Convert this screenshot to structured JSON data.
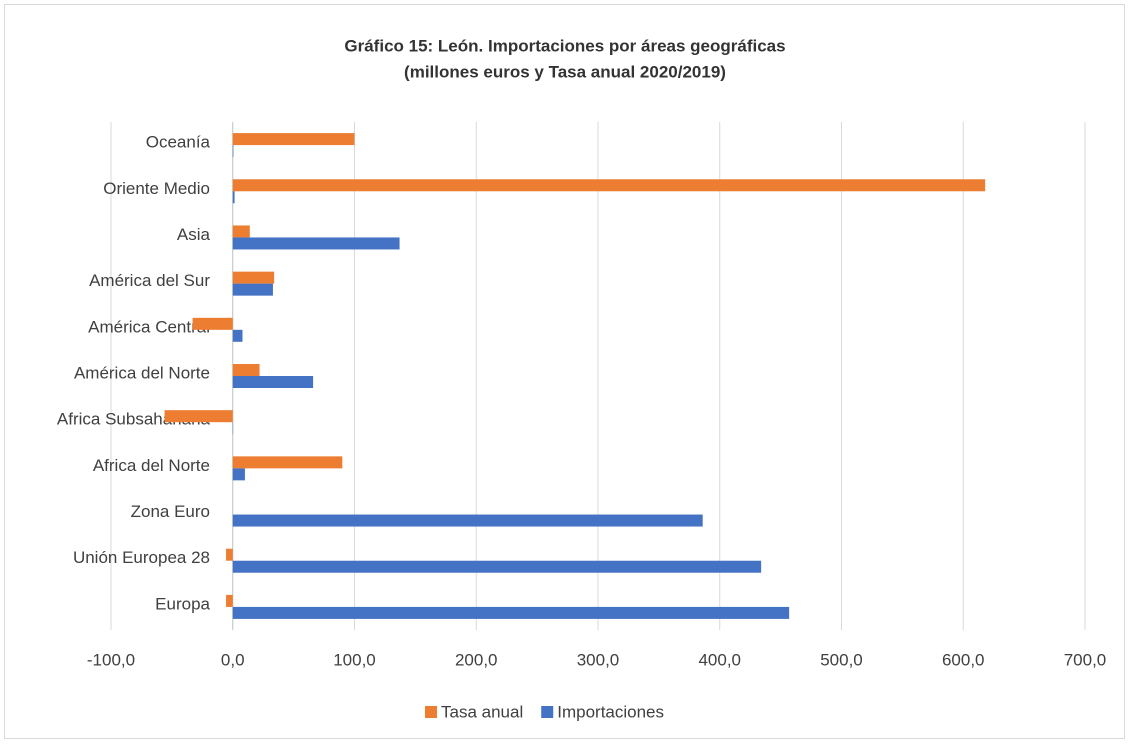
{
  "chart_data": {
    "type": "barh",
    "title": "Gráfico 15: León. Importaciones por áreas geográficas",
    "subtitle": "(millones euros y Tasa anual 2020/2019)",
    "categories": [
      "Europa",
      "Unión Europea 28",
      "Zona Euro",
      "Africa del Norte",
      "Africa Subsahariana",
      "América del Norte",
      "América Central",
      "América del Sur",
      "Asia",
      "Oriente Medio",
      "Oceanía"
    ],
    "series": [
      {
        "name": "Tasa anual",
        "color": "#ed7d31",
        "values": [
          -5.5,
          -5.5,
          0,
          90,
          -56,
          22,
          -33,
          34,
          14,
          618,
          100
        ]
      },
      {
        "name": "Importaciones",
        "color": "#4472c4",
        "values": [
          457,
          434,
          386,
          10,
          0.3,
          66,
          8,
          33,
          137,
          1.5,
          0.5
        ]
      }
    ],
    "xlim": [
      -100,
      700
    ],
    "xticks": [
      {
        "value": -100,
        "label": "-100,0"
      },
      {
        "value": 0,
        "label": "0,0"
      },
      {
        "value": 100,
        "label": "100,0"
      },
      {
        "value": 200,
        "label": "200,0"
      },
      {
        "value": 300,
        "label": "300,0"
      },
      {
        "value": 400,
        "label": "400,0"
      },
      {
        "value": 500,
        "label": "500,0"
      },
      {
        "value": 600,
        "label": "600,0"
      },
      {
        "value": 700,
        "label": "700,0"
      }
    ],
    "grid": true,
    "legend": "bottom"
  }
}
